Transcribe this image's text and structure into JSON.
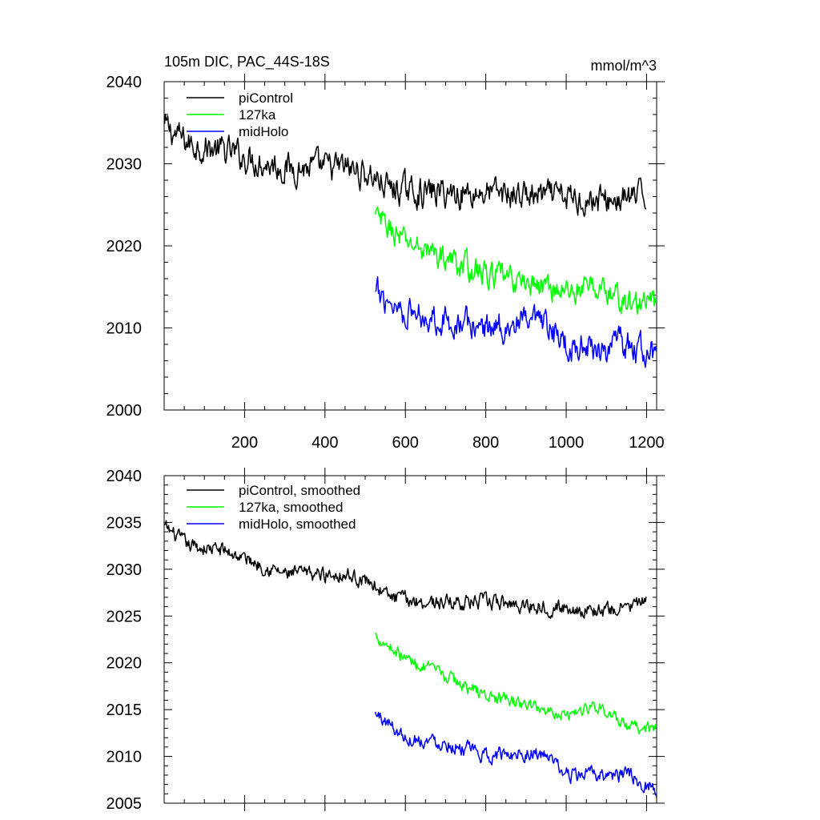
{
  "chart_data": [
    {
      "type": "line",
      "title": "105m DIC, PAC_44S-18S",
      "units": "mmol/m^3",
      "xlim": [
        0,
        1225
      ],
      "ylim": [
        2000,
        2040
      ],
      "xticks": [
        200,
        400,
        600,
        800,
        1000,
        1200
      ],
      "xtick_labels": [
        "200",
        "400",
        "600",
        "800",
        "1000",
        "1200"
      ],
      "yticks": [
        2000,
        2010,
        2020,
        2030,
        2040
      ],
      "ytick_labels": [
        "2000",
        "2010",
        "2020",
        "2030",
        "2040"
      ],
      "legend_position": "top-left",
      "series": [
        {
          "name": "piControl",
          "color": "#000000",
          "x_start": 1,
          "x_end": 1200,
          "noise": 1.8,
          "trend": [
            [
              1,
              2034.5
            ],
            [
              60,
              2032.5
            ],
            [
              150,
              2031.5
            ],
            [
              300,
              2029.5
            ],
            [
              450,
              2029.5
            ],
            [
              520,
              2028.5
            ],
            [
              560,
              2027
            ],
            [
              650,
              2026.5
            ],
            [
              800,
              2026.5
            ],
            [
              950,
              2026
            ],
            [
              1100,
              2025.5
            ],
            [
              1200,
              2026
            ]
          ],
          "sample": [
            [
              1,
              2034.5
            ],
            [
              100,
              2032
            ],
            [
              200,
              2030.5
            ],
            [
              300,
              2029
            ],
            [
              400,
              2029.5
            ],
            [
              500,
              2029.5
            ],
            [
              600,
              2026.5
            ],
            [
              700,
              2027
            ],
            [
              800,
              2026
            ],
            [
              900,
              2027
            ],
            [
              1000,
              2025.5
            ],
            [
              1100,
              2025
            ],
            [
              1200,
              2026
            ]
          ]
        },
        {
          "name": "127ka",
          "color": "#00ff00",
          "x_start": 525,
          "x_end": 1225,
          "noise": 1.6,
          "trend": [
            [
              525,
              2023.5
            ],
            [
              600,
              2020.5
            ],
            [
              700,
              2018.5
            ],
            [
              800,
              2016.5
            ],
            [
              900,
              2015.5
            ],
            [
              1000,
              2014.5
            ],
            [
              1080,
              2015
            ],
            [
              1150,
              2013
            ],
            [
              1225,
              2013
            ]
          ],
          "sample": [
            [
              525,
              2023.5
            ],
            [
              600,
              2020.5
            ],
            [
              700,
              2018.5
            ],
            [
              800,
              2016.5
            ],
            [
              900,
              2015.5
            ],
            [
              1000,
              2014.5
            ],
            [
              1100,
              2014
            ],
            [
              1200,
              2013
            ]
          ]
        },
        {
          "name": "midHolo",
          "color": "#0000ff",
          "x_start": 525,
          "x_end": 1225,
          "noise": 1.8,
          "trend": [
            [
              525,
              2014
            ],
            [
              560,
              2013.5
            ],
            [
              600,
              2012
            ],
            [
              700,
              2011
            ],
            [
              800,
              2010
            ],
            [
              900,
              2010.5
            ],
            [
              950,
              2010
            ],
            [
              1000,
              2008
            ],
            [
              1100,
              2007.5
            ],
            [
              1150,
              2008
            ],
            [
              1225,
              2006.5
            ]
          ],
          "sample": [
            [
              525,
              2014
            ],
            [
              600,
              2012
            ],
            [
              700,
              2011
            ],
            [
              800,
              2010
            ],
            [
              900,
              2010.5
            ],
            [
              1000,
              2008
            ],
            [
              1100,
              2007.5
            ],
            [
              1200,
              2006.5
            ]
          ]
        }
      ]
    },
    {
      "type": "line",
      "title": "",
      "xlim": [
        0,
        1225
      ],
      "ylim": [
        2005,
        2040
      ],
      "xticks": [
        200,
        400,
        600,
        800,
        1000,
        1200
      ],
      "yticks": [
        2005,
        2010,
        2015,
        2020,
        2025,
        2030,
        2035,
        2040
      ],
      "ytick_labels": [
        "2005",
        "2010",
        "2015",
        "2020",
        "2025",
        "2030",
        "2035",
        "2040"
      ],
      "legend_position": "top-left",
      "series": [
        {
          "name": "piControl, smoothed",
          "color": "#000000",
          "x_start": 1,
          "x_end": 1200,
          "noise": 0.8,
          "trend": [
            [
              1,
              2034.5
            ],
            [
              60,
              2032.5
            ],
            [
              150,
              2032
            ],
            [
              300,
              2029.5
            ],
            [
              450,
              2029.5
            ],
            [
              520,
              2028.5
            ],
            [
              560,
              2027
            ],
            [
              650,
              2026.5
            ],
            [
              800,
              2026.5
            ],
            [
              950,
              2026
            ],
            [
              1100,
              2025.5
            ],
            [
              1200,
              2026.5
            ]
          ],
          "sample": [
            [
              1,
              2035
            ],
            [
              100,
              2032
            ],
            [
              200,
              2031
            ],
            [
              300,
              2030
            ],
            [
              400,
              2029.5
            ],
            [
              500,
              2029.5
            ],
            [
              600,
              2026.5
            ],
            [
              700,
              2027
            ],
            [
              800,
              2026.5
            ],
            [
              900,
              2026.5
            ],
            [
              1000,
              2026
            ],
            [
              1100,
              2025.5
            ],
            [
              1200,
              2026.5
            ]
          ]
        },
        {
          "name": "127ka, smoothed",
          "color": "#00ff00",
          "x_start": 525,
          "x_end": 1225,
          "noise": 0.7,
          "trend": [
            [
              525,
              2023
            ],
            [
              600,
              2020.5
            ],
            [
              700,
              2018.5
            ],
            [
              800,
              2016.5
            ],
            [
              900,
              2015.5
            ],
            [
              1000,
              2014.5
            ],
            [
              1080,
              2015.5
            ],
            [
              1150,
              2013
            ],
            [
              1225,
              2013
            ]
          ],
          "sample": [
            [
              525,
              2023
            ],
            [
              600,
              2020.5
            ],
            [
              700,
              2018.5
            ],
            [
              800,
              2016.5
            ],
            [
              900,
              2015.5
            ],
            [
              1000,
              2014.5
            ],
            [
              1100,
              2014.5
            ],
            [
              1200,
              2013
            ]
          ]
        },
        {
          "name": "midHolo, smoothed",
          "color": "#0000ff",
          "x_start": 525,
          "x_end": 1225,
          "noise": 0.8,
          "trend": [
            [
              525,
              2014.5
            ],
            [
              560,
              2013.5
            ],
            [
              600,
              2012
            ],
            [
              700,
              2011.5
            ],
            [
              800,
              2010
            ],
            [
              900,
              2010.5
            ],
            [
              950,
              2010
            ],
            [
              1000,
              2008
            ],
            [
              1100,
              2008
            ],
            [
              1150,
              2008
            ],
            [
              1225,
              2006.5
            ]
          ],
          "sample": [
            [
              525,
              2014.5
            ],
            [
              600,
              2012
            ],
            [
              700,
              2011.5
            ],
            [
              800,
              2010
            ],
            [
              900,
              2010.5
            ],
            [
              1000,
              2008
            ],
            [
              1100,
              2008
            ],
            [
              1200,
              2006.5
            ]
          ]
        }
      ]
    }
  ]
}
